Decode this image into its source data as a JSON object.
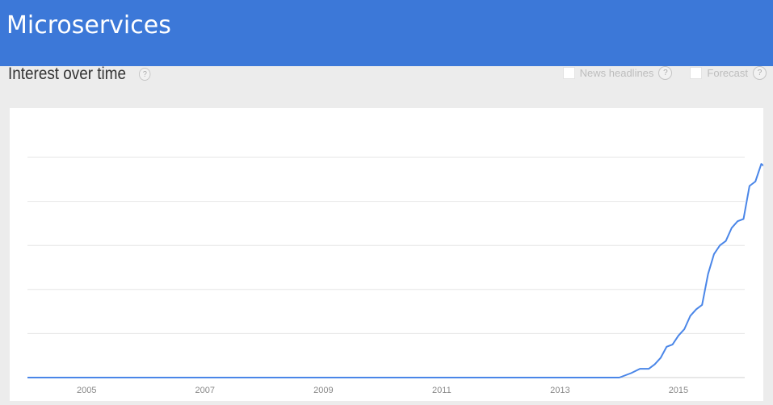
{
  "page": {
    "title": "Microservices",
    "heading": "Interest over time",
    "help_glyph": "?",
    "options": [
      {
        "label": "News headlines",
        "checked": false
      },
      {
        "label": "Forecast",
        "checked": false
      }
    ]
  },
  "colors": {
    "banner": "#3c78d8",
    "line": "#4a86e8",
    "grid": "#e6e6e6",
    "background": "#ececec"
  },
  "chart_data": {
    "type": "line",
    "title": "",
    "xlabel": "",
    "ylabel": "",
    "x_ticks": [
      "2005",
      "2007",
      "2009",
      "2011",
      "2013",
      "2015"
    ],
    "xlim": [
      2004.0,
      2016.12
    ],
    "ylim": [
      0,
      100
    ],
    "grid": true,
    "series": [
      {
        "values": [
          [
            2004.0,
            0
          ],
          [
            2013.0,
            0
          ],
          [
            2014.0,
            0
          ],
          [
            2014.2,
            2
          ],
          [
            2014.35,
            4
          ],
          [
            2014.5,
            4
          ],
          [
            2014.6,
            6
          ],
          [
            2014.7,
            9
          ],
          [
            2014.8,
            14
          ],
          [
            2014.9,
            15
          ],
          [
            2015.0,
            19
          ],
          [
            2015.1,
            22
          ],
          [
            2015.2,
            28
          ],
          [
            2015.3,
            31
          ],
          [
            2015.4,
            33
          ],
          [
            2015.5,
            47
          ],
          [
            2015.6,
            56
          ],
          [
            2015.7,
            60
          ],
          [
            2015.8,
            62
          ],
          [
            2015.9,
            68
          ],
          [
            2016.0,
            71
          ],
          [
            2016.1,
            72
          ],
          [
            2016.2,
            87
          ],
          [
            2016.3,
            89
          ],
          [
            2016.4,
            97
          ],
          [
            2016.5,
            95
          ],
          [
            2016.6,
            100
          ]
        ]
      }
    ]
  }
}
